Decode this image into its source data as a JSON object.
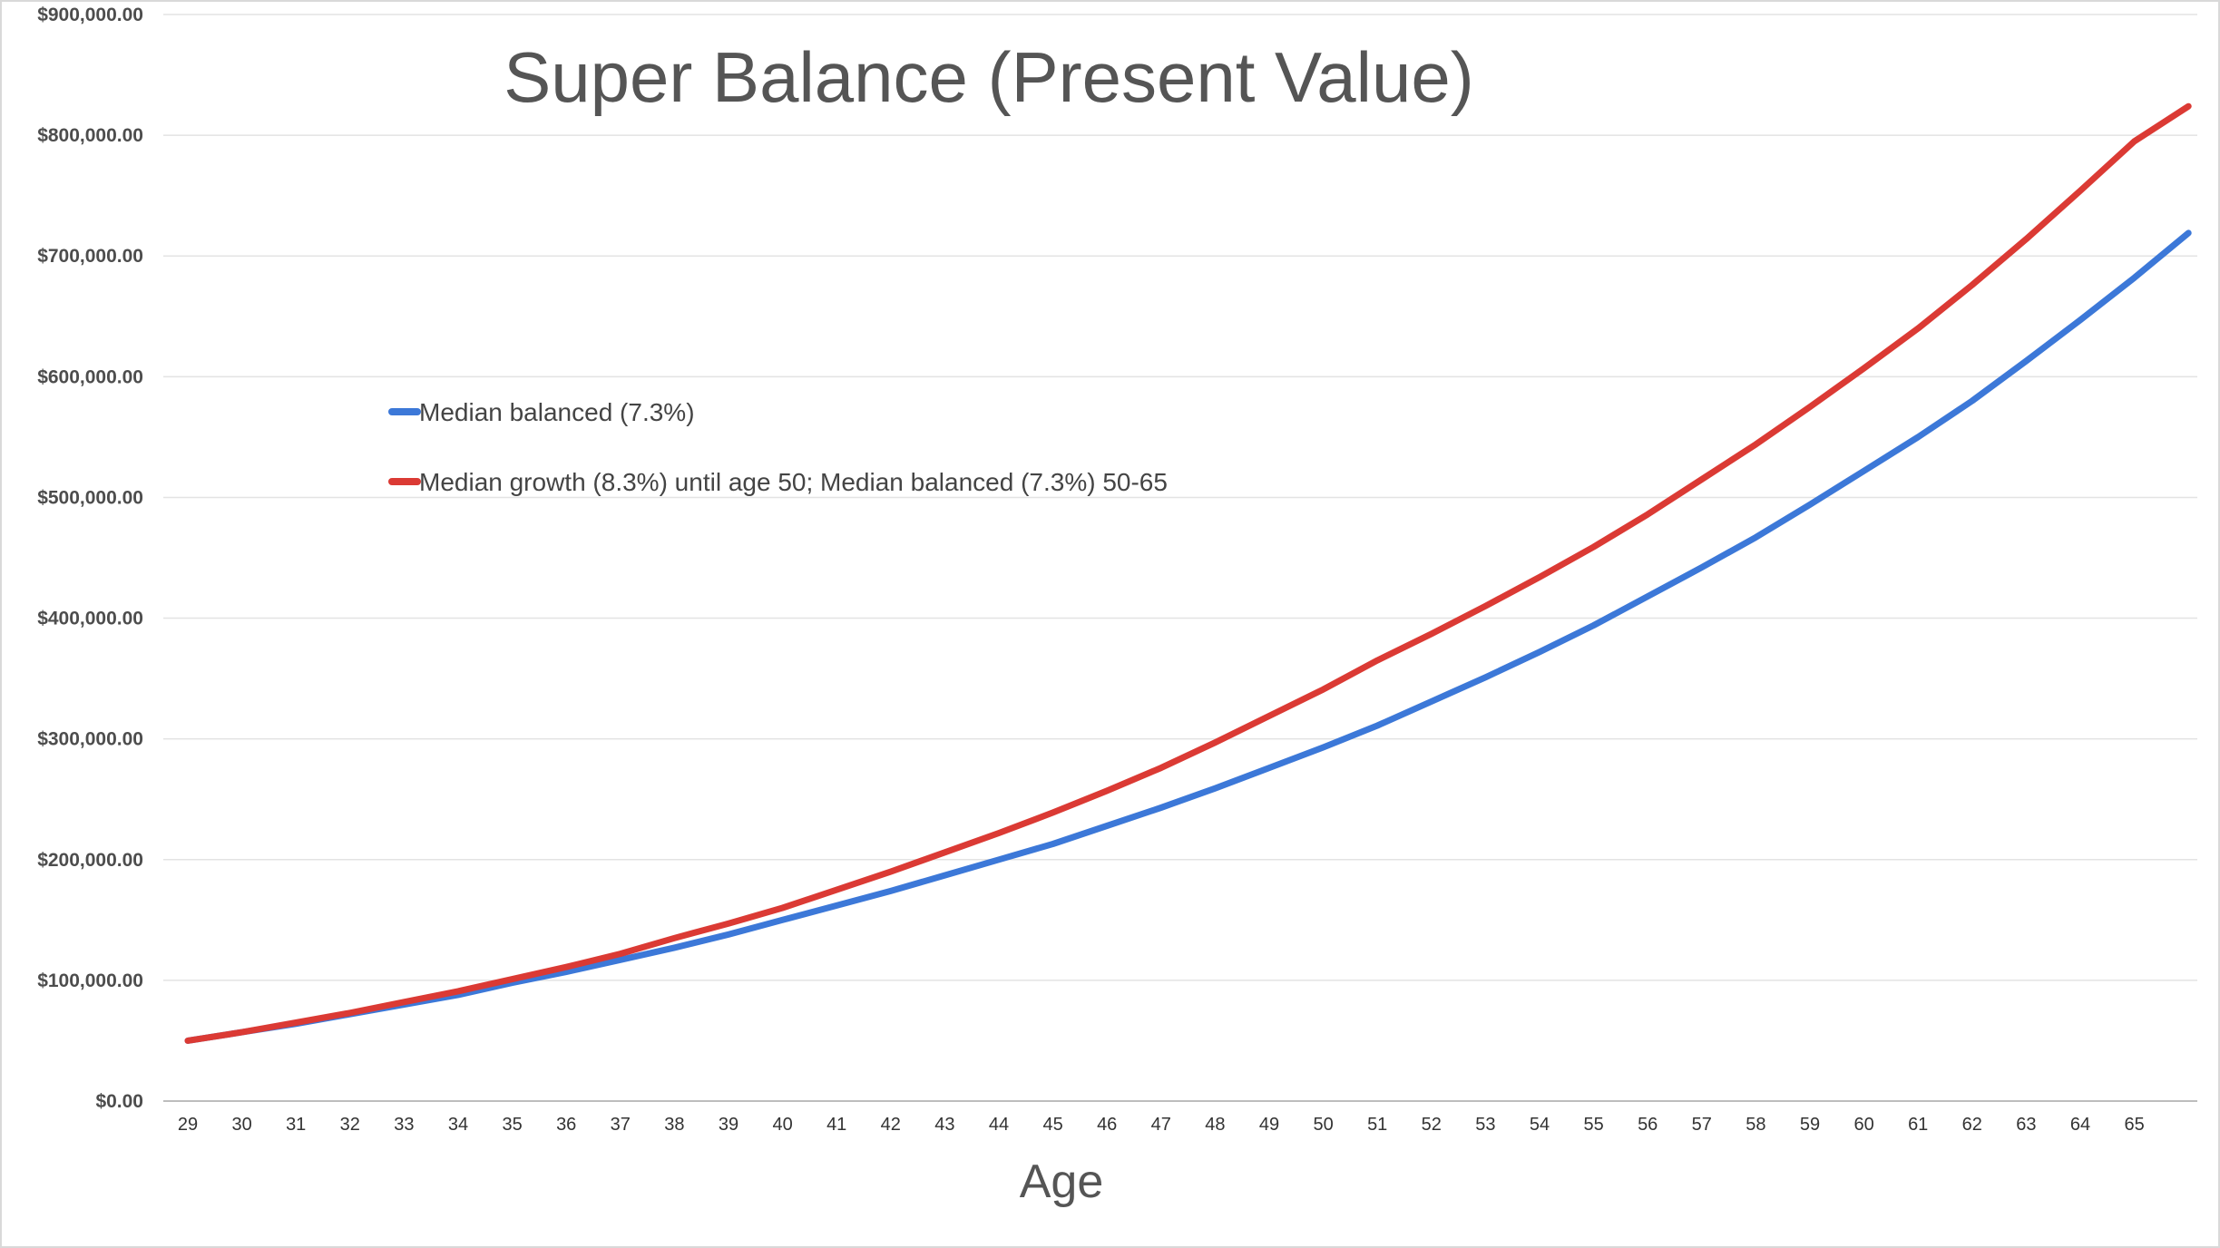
{
  "chart_data": {
    "type": "line",
    "title": "Super Balance (Present Value)",
    "xlabel": "Age",
    "ylabel": "",
    "x": [
      29,
      30,
      31,
      32,
      33,
      34,
      35,
      36,
      37,
      38,
      39,
      40,
      41,
      42,
      43,
      44,
      45,
      46,
      47,
      48,
      49,
      50,
      51,
      52,
      53,
      54,
      55,
      56,
      57,
      58,
      59,
      60,
      61,
      62,
      63,
      64,
      65,
      66
    ],
    "x_tick_labels": [
      "29",
      "30",
      "31",
      "32",
      "33",
      "34",
      "35",
      "36",
      "37",
      "38",
      "39",
      "40",
      "41",
      "42",
      "43",
      "44",
      "45",
      "46",
      "47",
      "48",
      "49",
      "50",
      "51",
      "52",
      "53",
      "54",
      "55",
      "56",
      "57",
      "58",
      "59",
      "60",
      "61",
      "62",
      "63",
      "64",
      "65"
    ],
    "ylim": [
      0,
      900000
    ],
    "y_ticks": [
      0,
      100000,
      200000,
      300000,
      400000,
      500000,
      600000,
      700000,
      800000,
      900000
    ],
    "y_tick_labels": [
      "$0.00",
      "$100,000.00",
      "$200,000.00",
      "$300,000.00",
      "$400,000.00",
      "$500,000.00",
      "$600,000.00",
      "$700,000.00",
      "$800,000.00",
      "$900,000.00"
    ],
    "grid": true,
    "legend_position": "upper-left",
    "series": [
      {
        "name": "Median balanced (7.3%)",
        "color": "#3c78d8",
        "values": [
          50000,
          57000,
          64000,
          72000,
          80000,
          88000,
          98000,
          107000,
          117000,
          127000,
          138000,
          150000,
          162000,
          174000,
          187000,
          200000,
          213000,
          228000,
          243000,
          259000,
          276000,
          293000,
          311000,
          331000,
          351000,
          372000,
          394000,
          418000,
          442000,
          467000,
          494000,
          522000,
          550000,
          580000,
          613000,
          647000,
          682000,
          719000
        ]
      },
      {
        "name": "Median growth (8.3%) until age 50; Median balanced (7.3%) 50-65",
        "color": "#db3a34",
        "values": [
          50000,
          57000,
          65000,
          73000,
          82000,
          91000,
          101000,
          111000,
          122000,
          135000,
          147000,
          160000,
          175000,
          190000,
          206000,
          222000,
          239000,
          257000,
          276000,
          297000,
          319000,
          341000,
          365000,
          387000,
          410000,
          434000,
          459000,
          486000,
          515000,
          544000,
          575000,
          607000,
          640000,
          676000,
          714000,
          754000,
          795000,
          824000
        ]
      }
    ]
  }
}
